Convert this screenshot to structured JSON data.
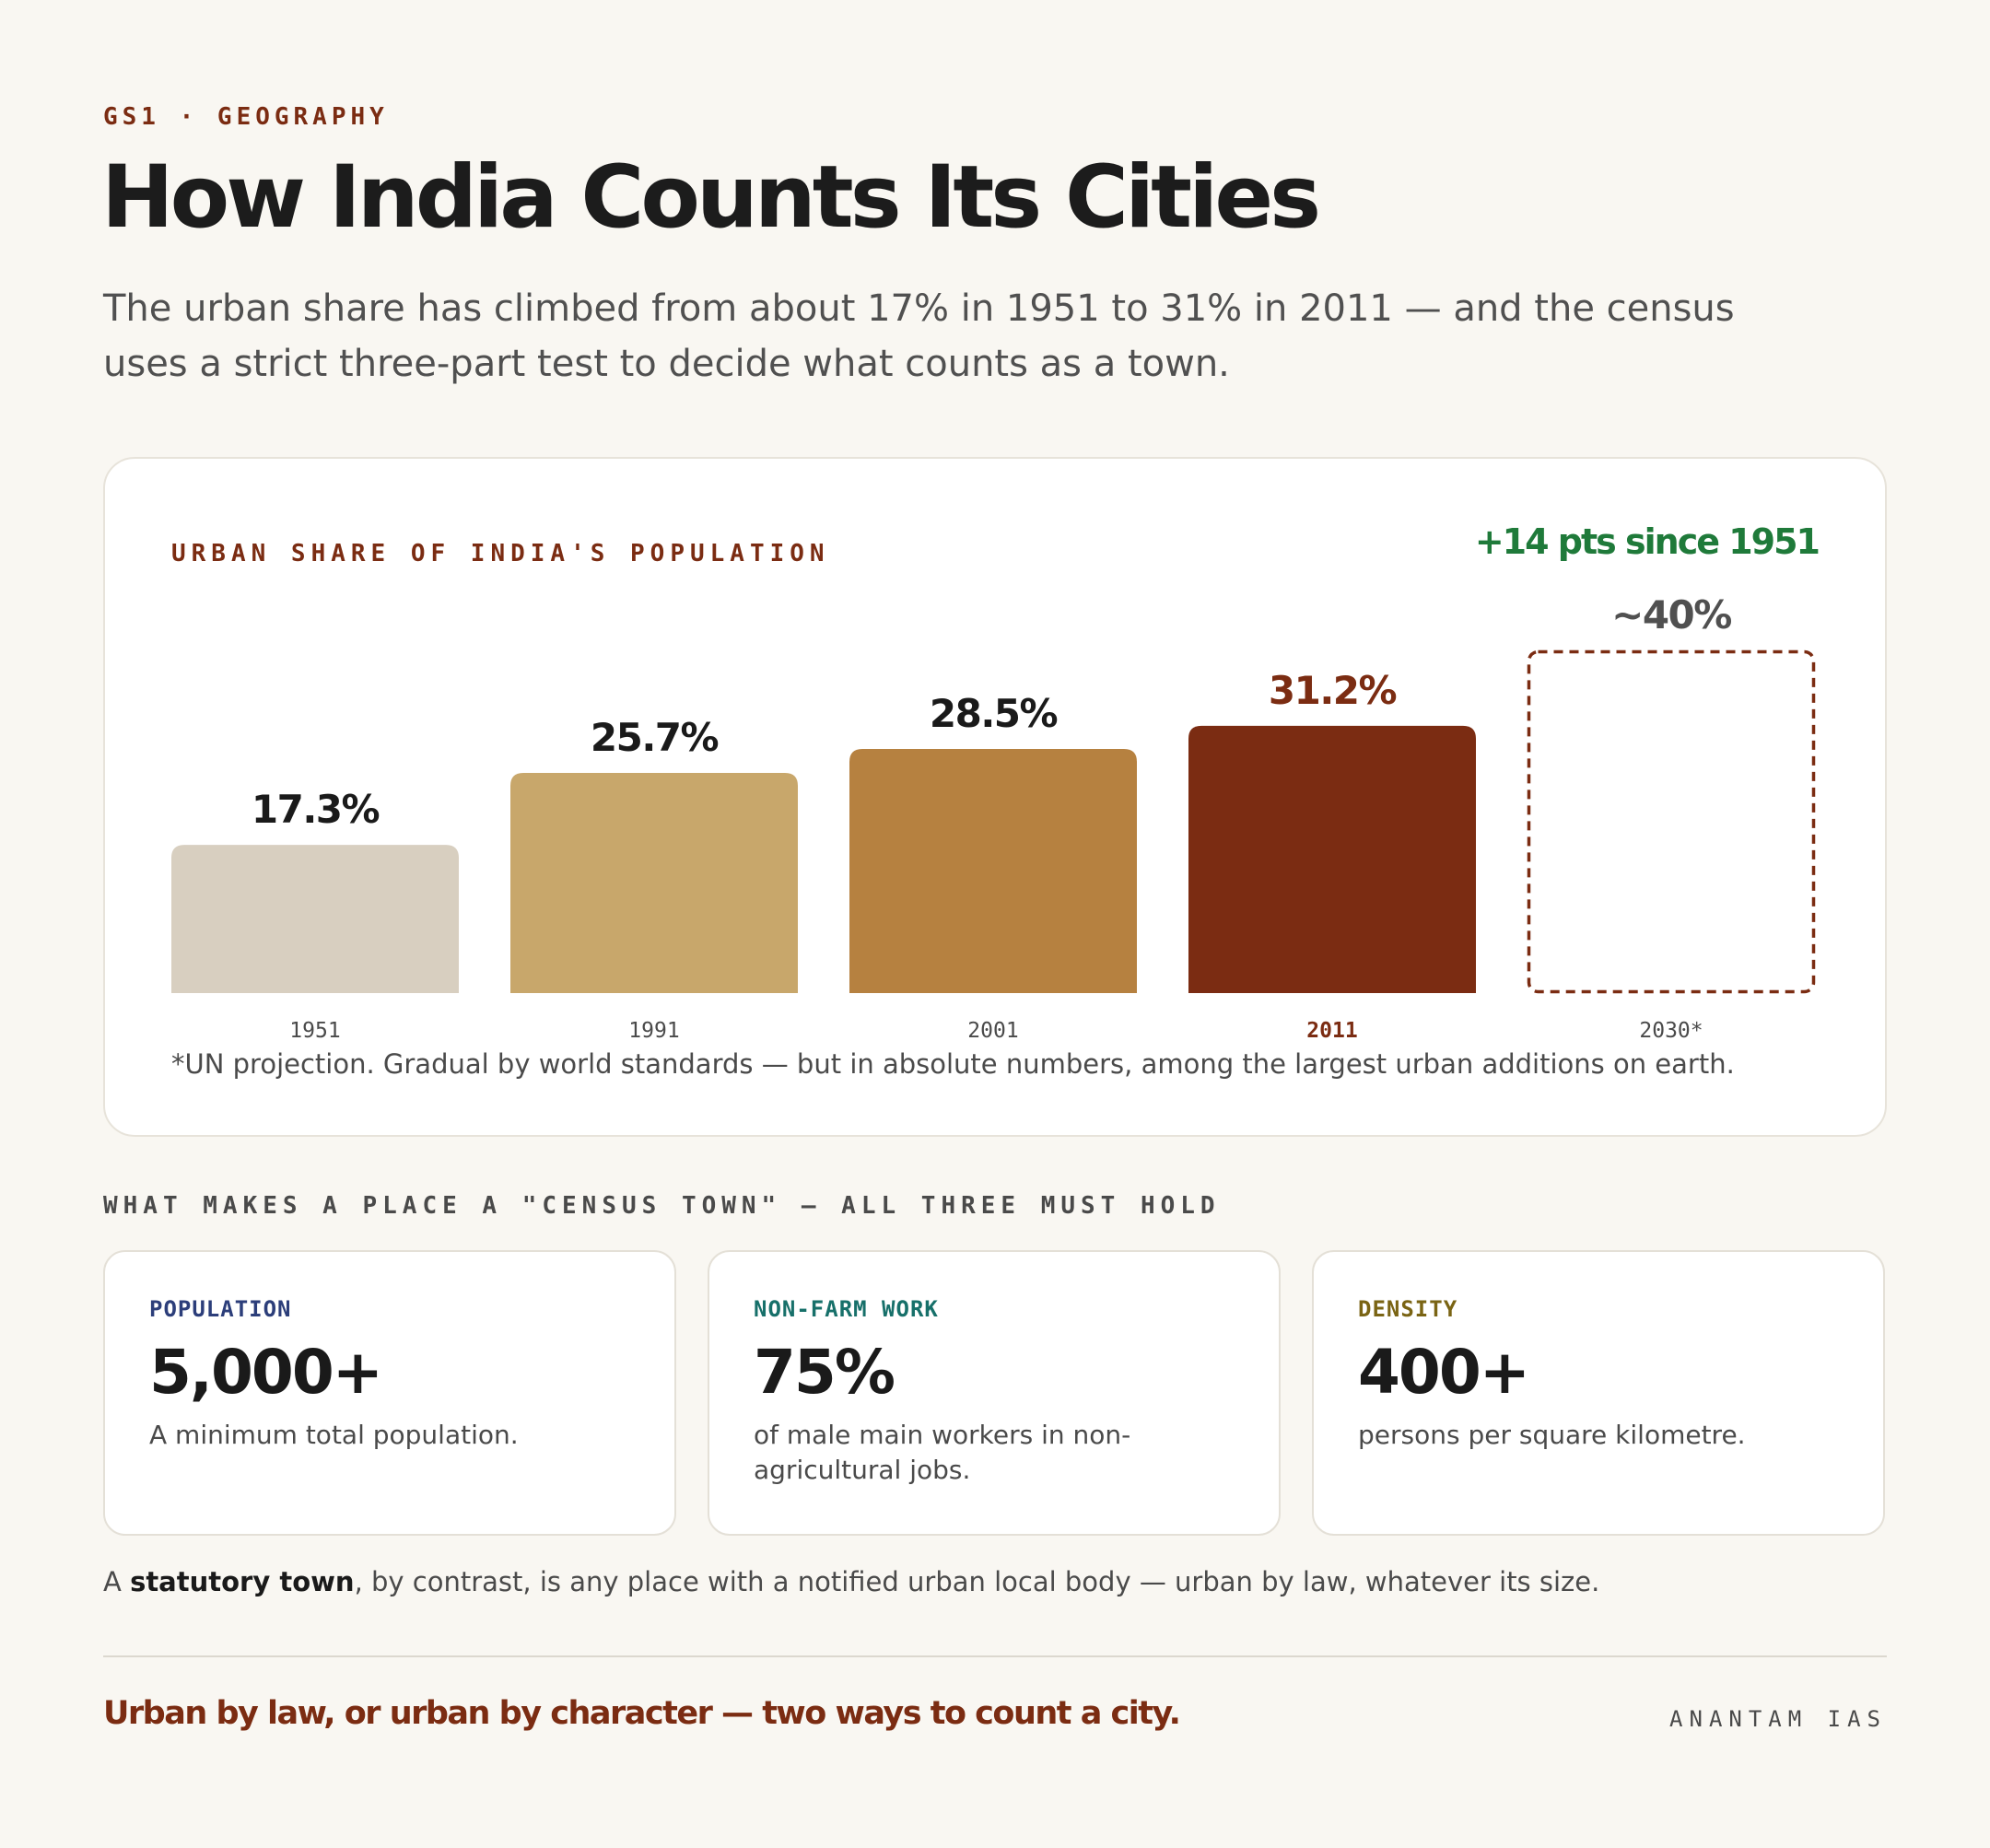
{
  "header": {
    "eyebrow": "GS1 · GEOGRAPHY",
    "title": "How India Counts Its Cities",
    "subtitle": "The urban share has climbed from about 17% in 1951 to 31% in 2011 — and the census uses a strict three-part test to decide what counts as a town."
  },
  "chart_data": {
    "type": "bar",
    "title": "URBAN SHARE OF INDIA'S POPULATION",
    "annotation": "+14 pts since 1951",
    "categories": [
      "1951",
      "1991",
      "2001",
      "2011",
      "2030*"
    ],
    "values": [
      17.3,
      25.7,
      28.5,
      31.2,
      40
    ],
    "value_labels": [
      "17.3%",
      "25.7%",
      "28.5%",
      "31.2%",
      "~40%"
    ],
    "projected": [
      false,
      false,
      false,
      false,
      true
    ],
    "colors": [
      "#d8cfc0",
      "#c8a76b",
      "#b68140",
      "#7b2c12",
      "#7b2c12"
    ],
    "label_colors": [
      "#1a1a1a",
      "#1a1a1a",
      "#1a1a1a",
      "#7b2c12",
      "#505050"
    ],
    "highlight_category": "2011",
    "ylim": [
      0,
      40
    ],
    "xlabel": "",
    "ylabel": "",
    "grid": false,
    "footnote": "*UN projection. Gradual by world standards — but in absolute numbers, among the largest urban additions on earth."
  },
  "criteria": {
    "heading": "WHAT MAKES A PLACE A \"CENSUS TOWN\" — ALL THREE MUST HOLD",
    "cards": [
      {
        "label": "POPULATION",
        "value": "5,000+",
        "desc": "A minimum total population.",
        "color": "#2c3e7a"
      },
      {
        "label": "NON-FARM WORK",
        "value": "75%",
        "desc": "of male main workers in non-agricultural jobs.",
        "color": "#17706a"
      },
      {
        "label": "DENSITY",
        "value": "400+",
        "desc": "persons per square kilometre.",
        "color": "#7a6414"
      }
    ]
  },
  "statutory": {
    "prefix": "A ",
    "term": "statutory town",
    "rest": ", by contrast, is any place with a notified urban local body — urban by law, whatever its size."
  },
  "footer": {
    "tagline": "Urban by law, or urban by character — two ways to count a city.",
    "brand": "ANANTAM IAS"
  }
}
